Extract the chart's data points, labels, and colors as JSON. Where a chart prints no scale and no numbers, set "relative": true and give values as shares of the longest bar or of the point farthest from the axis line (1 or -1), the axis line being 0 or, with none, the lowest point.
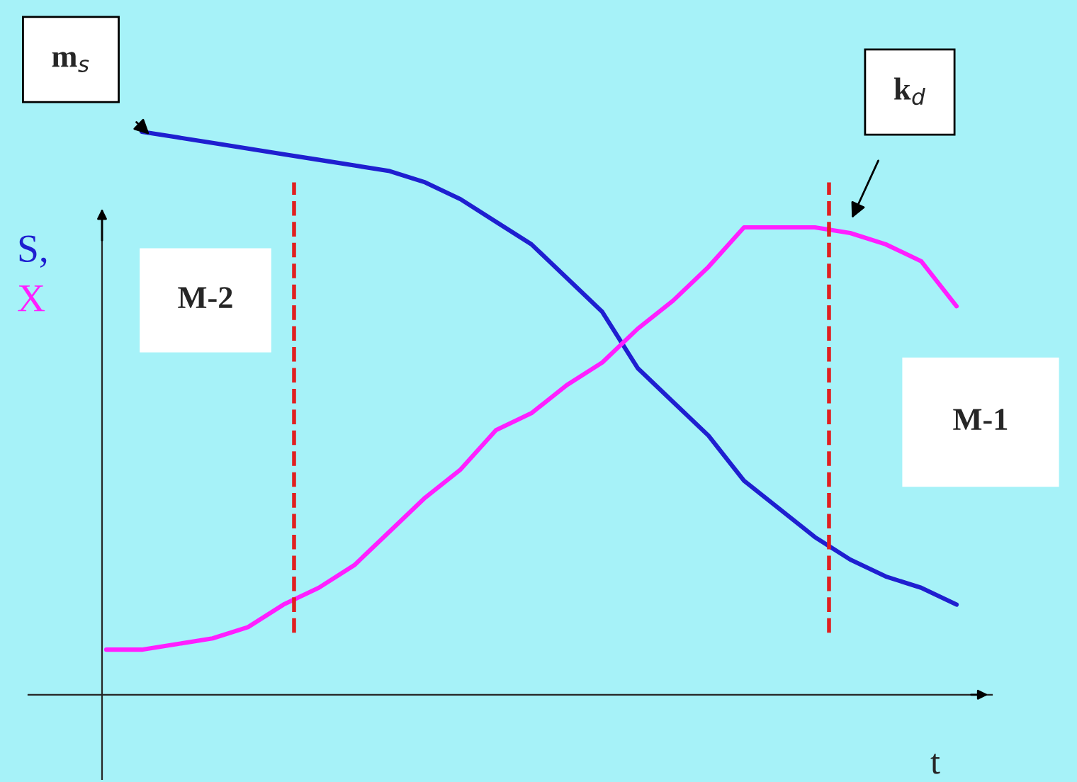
{
  "chart_data": {
    "type": "line",
    "relative": true,
    "xlabel": "t",
    "categories": [
      null,
      null,
      null,
      null,
      null,
      null,
      null,
      null,
      null,
      null,
      null,
      null,
      null,
      null,
      null,
      null,
      null,
      null,
      null,
      null,
      null,
      null,
      null,
      null,
      null
    ],
    "series": [
      {
        "name": "S,",
        "color": "#1f1fd0",
        "values": [
          null,
          1.0,
          0.99,
          0.98,
          0.97,
          0.96,
          0.95,
          0.94,
          0.93,
          0.91,
          0.88,
          0.84,
          0.8,
          0.74,
          0.68,
          0.58,
          0.52,
          0.46,
          0.38,
          0.33,
          0.28,
          0.24,
          0.21,
          0.19,
          0.16
        ]
      },
      {
        "name": "X",
        "color": "#ff1fff",
        "values": [
          0.08,
          0.08,
          0.09,
          0.1,
          0.12,
          0.16,
          0.19,
          0.23,
          0.29,
          0.35,
          0.4,
          0.47,
          0.5,
          0.55,
          0.59,
          0.65,
          0.7,
          0.76,
          0.83,
          0.83,
          0.83,
          0.82,
          0.8,
          0.77,
          0.69
        ]
      }
    ],
    "annotations": [
      "m$_{s}$",
      "k$_{d}$",
      "M-2",
      "M-1"
    ],
    "grid": false,
    "legend": false,
    "line_style": "solid",
    "marker": "none"
  }
}
